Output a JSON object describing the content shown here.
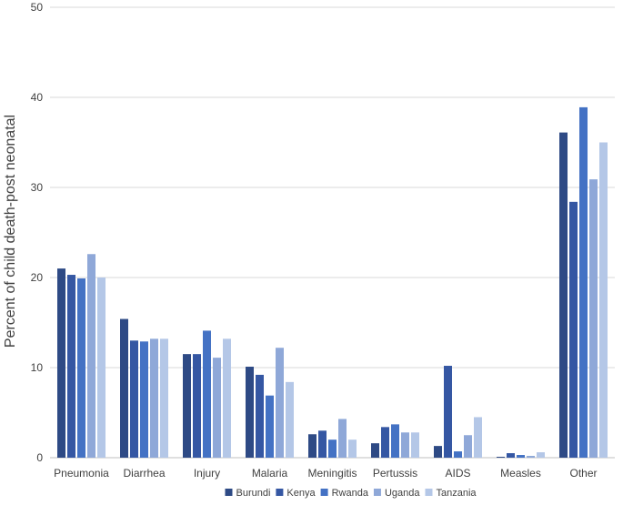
{
  "chart_data": {
    "type": "bar",
    "title": "",
    "xlabel": "",
    "ylabel": "Percent of child death-post neonatal",
    "ylim": [
      0,
      50
    ],
    "yticks": [
      0,
      10,
      20,
      30,
      40,
      50
    ],
    "grid": true,
    "legend_position": "bottom",
    "categories": [
      "Pneumonia",
      "Diarrhea",
      "Injury",
      "Malaria",
      "Meningitis",
      "Pertussis",
      "AIDS",
      "Measles",
      "Other"
    ],
    "series": [
      {
        "name": "Burundi",
        "color": "#2e4a85",
        "values": [
          21.0,
          15.4,
          11.5,
          10.1,
          2.6,
          1.6,
          1.3,
          0.1,
          36.1
        ]
      },
      {
        "name": "Kenya",
        "color": "#3557a3",
        "values": [
          20.3,
          13.0,
          11.5,
          9.2,
          3.0,
          3.4,
          10.2,
          0.5,
          28.4
        ]
      },
      {
        "name": "Rwanda",
        "color": "#4472c4",
        "values": [
          19.9,
          12.9,
          14.1,
          6.9,
          2.0,
          3.7,
          0.7,
          0.3,
          38.9
        ]
      },
      {
        "name": "Uganda",
        "color": "#8fa8d8",
        "values": [
          22.6,
          13.2,
          11.1,
          12.2,
          4.3,
          2.8,
          2.5,
          0.2,
          30.9
        ]
      },
      {
        "name": "Tanzania",
        "color": "#b4c7e7",
        "values": [
          20.0,
          13.2,
          13.2,
          8.4,
          2.0,
          2.8,
          4.5,
          0.6,
          35.0
        ]
      }
    ]
  }
}
